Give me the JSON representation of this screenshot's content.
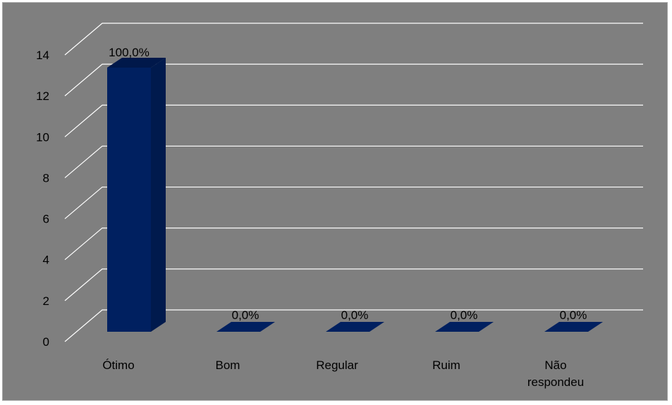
{
  "chart_data": {
    "type": "bar",
    "title": "",
    "xlabel": "",
    "ylabel": "",
    "categories": [
      "Ótimo",
      "Bom",
      "Regular",
      "Ruim",
      "Não respondeu"
    ],
    "category_lines": [
      [
        "Ótimo"
      ],
      [
        "Bom"
      ],
      [
        "Regular"
      ],
      [
        "Ruim"
      ],
      [
        "Não",
        "respondeu"
      ]
    ],
    "values": [
      13,
      0,
      0,
      0,
      0
    ],
    "data_labels": [
      "100,0%",
      "0,0%",
      "0,0%",
      "0,0%",
      "0,0%"
    ],
    "ylim": [
      0,
      14
    ],
    "yticks": [
      "0",
      "2",
      "4",
      "6",
      "8",
      "10",
      "12",
      "14"
    ],
    "grid": true,
    "legend": "none",
    "colors": {
      "background": "#7f7f7f",
      "bar_front": "#002060",
      "bar_side": "#001a4d",
      "bar_top": "#00184a",
      "grid": "#ffffff"
    }
  }
}
